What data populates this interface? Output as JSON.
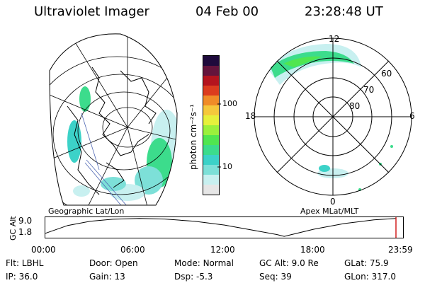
{
  "header": {
    "instrument": "Ultraviolet Imager",
    "date": "04 Feb 00",
    "time": "23:28:48 UT"
  },
  "colorbar": {
    "unit_label": "photon cm⁻²s⁻¹",
    "ticks": [
      "100",
      "10"
    ],
    "colors": [
      "#e6e6e6",
      "#c8f0f0",
      "#7de0d8",
      "#3cd2c8",
      "#3cdc8c",
      "#50e650",
      "#9bf03c",
      "#e6f03c",
      "#f5c83c",
      "#f08c28",
      "#dc3c1e",
      "#b4141e",
      "#64143c",
      "#1e0a3c"
    ]
  },
  "left_map": {
    "label": "Geographic Lat/Lon"
  },
  "right_map": {
    "label": "Apex MLat/MLT",
    "mlt_labels": {
      "top": "12",
      "left": "18",
      "right": "6",
      "bottom": "0"
    },
    "lat_labels": [
      "60",
      "70",
      "80"
    ]
  },
  "timeline": {
    "axis_title": "GC Alt",
    "y_ticks": [
      "9.0",
      "1.8"
    ],
    "x_ticks": [
      "00:00",
      "06:00",
      "12:00",
      "18:00",
      "23:59"
    ],
    "altitude_series": [
      {
        "time": 0.0,
        "alt": 1.8
      },
      {
        "time": 1.5,
        "alt": 5.6
      },
      {
        "time": 3.0,
        "alt": 7.6
      },
      {
        "time": 4.5,
        "alt": 8.6
      },
      {
        "time": 6.3,
        "alt": 9.0
      },
      {
        "time": 8.0,
        "alt": 8.7
      },
      {
        "time": 10.0,
        "alt": 7.6
      },
      {
        "time": 12.0,
        "alt": 5.8
      },
      {
        "time": 14.0,
        "alt": 3.2
      },
      {
        "time": 15.5,
        "alt": 1.2
      },
      {
        "time": 16.0,
        "alt": 0.3
      },
      {
        "time": 16.5,
        "alt": 1.2
      },
      {
        "time": 18.0,
        "alt": 3.8
      },
      {
        "time": 20.0,
        "alt": 6.5
      },
      {
        "time": 22.0,
        "alt": 8.3
      },
      {
        "time": 23.5,
        "alt": 9.0
      }
    ],
    "current_time": 23.48,
    "marker_color": "#d22020"
  },
  "status": {
    "row1": [
      {
        "key": "Flt:",
        "value": "LBHL"
      },
      {
        "key": "Door:",
        "value": "Open"
      },
      {
        "key": "Mode:",
        "value": "Normal"
      },
      {
        "key": "GC Alt:",
        "value": "9.0 Re"
      },
      {
        "key": "GLat:",
        "value": "75.9"
      }
    ],
    "row2": [
      {
        "key": "IP:",
        "value": "36.0"
      },
      {
        "key": "Gain:",
        "value": "13"
      },
      {
        "key": "Dsp:",
        "value": "-5.3"
      },
      {
        "key": "Seq:",
        "value": "39"
      },
      {
        "key": "GLon:",
        "value": "317.0"
      }
    ]
  }
}
